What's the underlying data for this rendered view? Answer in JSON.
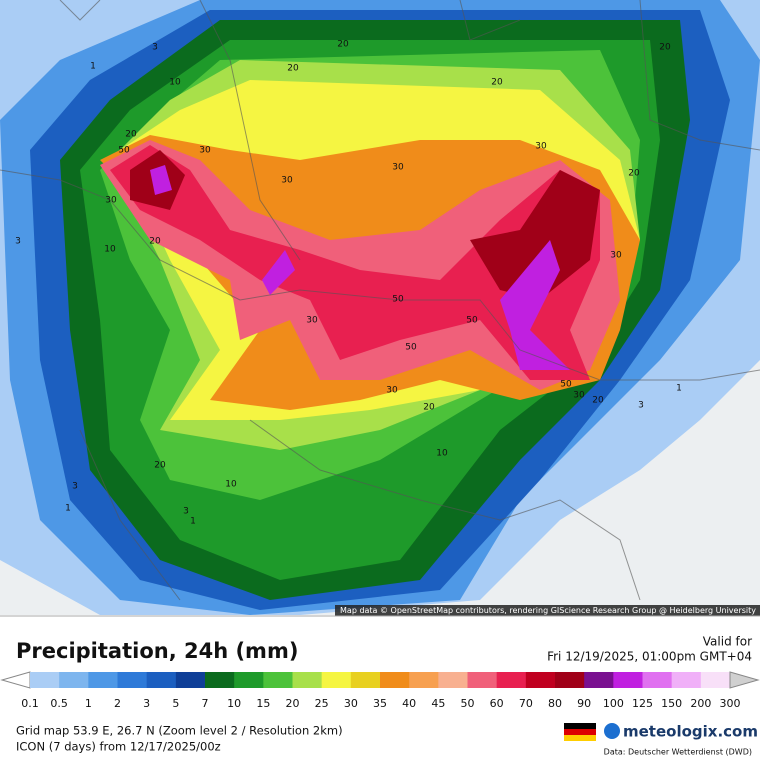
{
  "map": {
    "contour_labels": [
      "20",
      "20",
      "20",
      "20",
      "3",
      "1",
      "10",
      "20",
      "50",
      "30",
      "30",
      "30",
      "30",
      "20",
      "30",
      "20",
      "10",
      "3",
      "30",
      "30",
      "50",
      "50",
      "50",
      "30",
      "20",
      "50",
      "30",
      "20",
      "3",
      "1",
      "10",
      "20",
      "10",
      "3",
      "1",
      "3",
      "1"
    ],
    "attribution": "Map data © OpenStreetMap contributors, rendering GIScience Research Group @ Heidelberg University"
  },
  "header": {
    "title": "Precipitation, 24h (mm)",
    "valid_label": "Valid for",
    "valid_time": "Fri 12/19/2025, 01:00pm GMT+04"
  },
  "legend": {
    "labels": [
      "0.1",
      "0.5",
      "1",
      "2",
      "3",
      "5",
      "7",
      "10",
      "15",
      "20",
      "25",
      "30",
      "35",
      "40",
      "45",
      "50",
      "60",
      "70",
      "80",
      "90",
      "100",
      "125",
      "150",
      "200",
      "300"
    ],
    "colors": [
      "#ffffff",
      "#aacdf5",
      "#7db5ee",
      "#4e98e6",
      "#2e7ad8",
      "#1c5fc0",
      "#0f3f98",
      "#0b6b1e",
      "#1e9a2a",
      "#4cc23a",
      "#a8e04a",
      "#f5f542",
      "#e8d020",
      "#f08c1a",
      "#f7a050",
      "#f8b090",
      "#f0607a",
      "#e82050",
      "#c00020",
      "#a00018",
      "#7a1090",
      "#c020e0",
      "#e070f0",
      "#f0b0f8",
      "#f8e0f8",
      "#d0d0d0"
    ]
  },
  "footer": {
    "grid": "Grid map 53.9 E, 26.7 N (Zoom level 2 / Resolution 2km)",
    "model": "ICON (7 days) from 12/17/2025/00z",
    "brand": "meteologix.com",
    "source": "Data: Deutscher Wetterdienst (DWD)"
  }
}
